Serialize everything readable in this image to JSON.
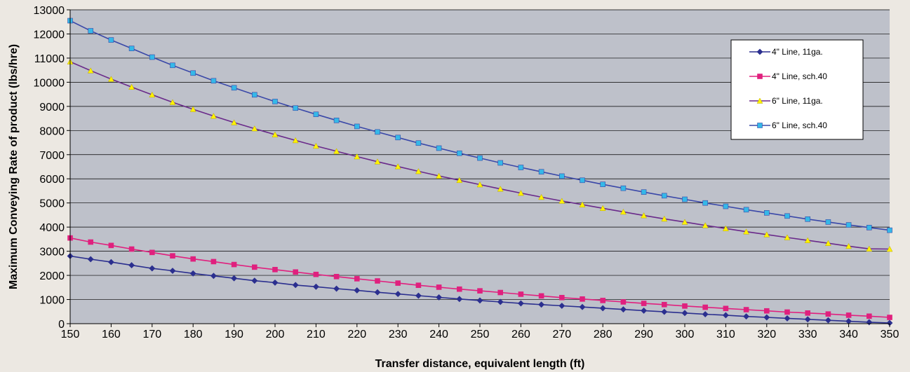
{
  "chart_data": {
    "type": "line",
    "title": "",
    "xlabel": "Transfer distance, equivalent length (ft)",
    "ylabel": "Maximum Conveying Rate of product (lbs/hre)",
    "xlim": [
      150,
      350
    ],
    "ylim": [
      0,
      13000
    ],
    "x_ticks": [
      150,
      160,
      170,
      180,
      190,
      200,
      210,
      220,
      230,
      240,
      250,
      260,
      270,
      280,
      290,
      300,
      310,
      320,
      330,
      340,
      350
    ],
    "y_ticks": [
      0,
      1000,
      2000,
      3000,
      4000,
      5000,
      6000,
      7000,
      8000,
      9000,
      10000,
      11000,
      12000,
      13000
    ],
    "grid": "horizontal",
    "legend_position": "top-right",
    "x": [
      150,
      155,
      160,
      165,
      170,
      175,
      180,
      185,
      190,
      195,
      200,
      205,
      210,
      215,
      220,
      225,
      230,
      235,
      240,
      245,
      250,
      255,
      260,
      265,
      270,
      275,
      280,
      285,
      290,
      295,
      300,
      305,
      310,
      315,
      320,
      325,
      330,
      335,
      340,
      345,
      350
    ],
    "series": [
      {
        "name": "4\" Line, 11ga.",
        "color": "#2B2F8F",
        "marker": "diamond",
        "values": [
          2800,
          2670,
          2550,
          2420,
          2290,
          2190,
          2080,
          1980,
          1880,
          1780,
          1700,
          1600,
          1530,
          1450,
          1380,
          1300,
          1230,
          1160,
          1090,
          1020,
          960,
          900,
          840,
          790,
          740,
          690,
          640,
          590,
          540,
          490,
          440,
          390,
          350,
          300,
          260,
          220,
          180,
          140,
          100,
          60,
          30
        ]
      },
      {
        "name": "4\" Line,  sch.40",
        "color": "#E0207E",
        "marker": "square",
        "values": [
          3550,
          3380,
          3240,
          3090,
          2950,
          2810,
          2680,
          2570,
          2450,
          2340,
          2240,
          2140,
          2040,
          1950,
          1860,
          1770,
          1680,
          1590,
          1510,
          1430,
          1360,
          1290,
          1220,
          1150,
          1080,
          1020,
          960,
          900,
          840,
          790,
          730,
          680,
          630,
          580,
          530,
          480,
          440,
          400,
          350,
          310,
          260
        ]
      },
      {
        "name": "6\" Line,  11ga.",
        "color": "#6A2A8A",
        "marker_color": "#FFF200",
        "marker": "triangle",
        "values": [
          10850,
          10480,
          10130,
          9800,
          9480,
          9170,
          8880,
          8600,
          8330,
          8080,
          7830,
          7590,
          7360,
          7140,
          6920,
          6710,
          6510,
          6310,
          6120,
          5940,
          5760,
          5580,
          5410,
          5240,
          5080,
          4930,
          4780,
          4630,
          4480,
          4340,
          4210,
          4070,
          3940,
          3810,
          3690,
          3570,
          3450,
          3330,
          3210,
          3100,
          3090
        ]
      },
      {
        "name": "6\" Line,  sch.40",
        "color": "#3A48A8",
        "marker_color": "#35B8E8",
        "marker": "square",
        "values": [
          12550,
          12130,
          11750,
          11400,
          11040,
          10700,
          10380,
          10060,
          9770,
          9480,
          9200,
          8930,
          8670,
          8420,
          8170,
          7940,
          7710,
          7480,
          7270,
          7060,
          6860,
          6660,
          6470,
          6290,
          6110,
          5940,
          5770,
          5610,
          5450,
          5300,
          5150,
          5000,
          4860,
          4720,
          4590,
          4460,
          4330,
          4210,
          4090,
          3980,
          3870
        ]
      }
    ]
  }
}
